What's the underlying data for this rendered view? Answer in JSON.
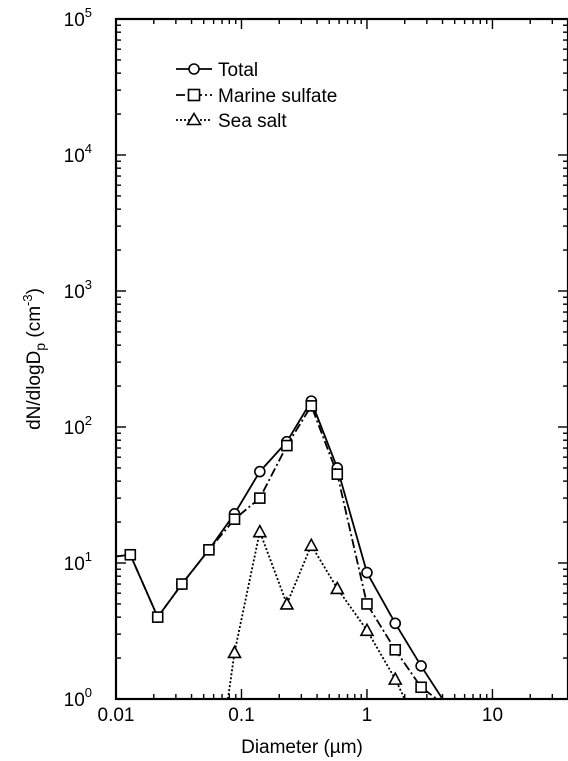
{
  "chart_data": {
    "type": "line",
    "title": "",
    "xlabel": "Diameter (µm)",
    "ylabel": "dN/dlogD",
    "ylabel_sub": "p",
    "ylabel_unit_open": " (cm",
    "ylabel_unit_sup": "-3",
    "ylabel_unit_close": ")",
    "xscale": "log",
    "yscale": "log",
    "xlim": [
      0.01,
      40
    ],
    "ylim": [
      1,
      100000
    ],
    "grid": false,
    "legend_position": "top-left",
    "x_tick_labels": [
      {
        "value": 0.01,
        "label": "0.01"
      },
      {
        "value": 0.1,
        "label": "0.1"
      },
      {
        "value": 1,
        "label": "1"
      },
      {
        "value": 10,
        "label": "10"
      }
    ],
    "y_tick_labels": [
      {
        "value": 1,
        "base": "10",
        "exp": "0"
      },
      {
        "value": 10,
        "base": "10",
        "exp": "1"
      },
      {
        "value": 100,
        "base": "10",
        "exp": "2"
      },
      {
        "value": 1000,
        "base": "10",
        "exp": "3"
      },
      {
        "value": 10000,
        "base": "10",
        "exp": "4"
      },
      {
        "value": 100000,
        "base": "10",
        "exp": "5"
      }
    ],
    "series": [
      {
        "name": "Total",
        "marker": "circle",
        "dash": "solid",
        "x": [
          0.0087,
          0.013,
          0.0215,
          0.0335,
          0.055,
          0.088,
          0.14,
          0.23,
          0.36,
          0.58,
          1.0,
          1.68,
          2.7,
          4.0
        ],
        "y": [
          11,
          11.5,
          4.0,
          7.0,
          12.5,
          23,
          47,
          78,
          155,
          50,
          8.5,
          3.6,
          1.75,
          1.0
        ]
      },
      {
        "name": "Marine sulfate",
        "marker": "square",
        "dash": "dashdot",
        "x": [
          0.0087,
          0.013,
          0.0215,
          0.0335,
          0.055,
          0.088,
          0.14,
          0.23,
          0.36,
          0.58,
          1.0,
          1.68,
          2.7,
          3.6
        ],
        "y": [
          11,
          11.5,
          4.0,
          7.0,
          12.5,
          21,
          30,
          73,
          143,
          45,
          5.0,
          2.3,
          1.22,
          1.0
        ]
      },
      {
        "name": "Sea salt",
        "marker": "triangle",
        "dash": "dotted",
        "x": [
          0.078,
          0.088,
          0.14,
          0.23,
          0.36,
          0.58,
          1.0,
          1.68,
          2.0
        ],
        "y": [
          1.0,
          2.2,
          17,
          5.0,
          13.5,
          6.5,
          3.2,
          1.4,
          1.0
        ]
      }
    ]
  }
}
